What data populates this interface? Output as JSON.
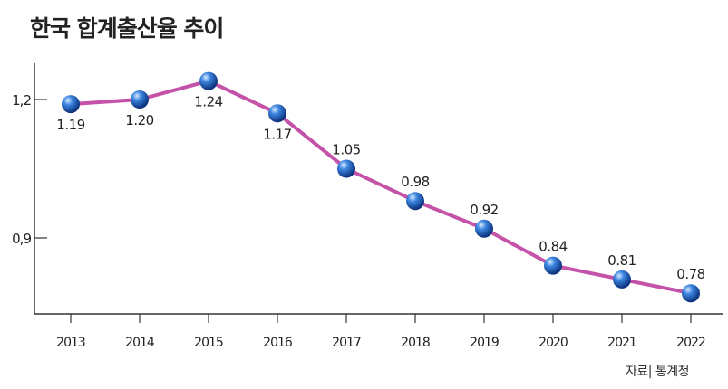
{
  "chart_data": {
    "type": "line",
    "title": "한국 합계출산율 추이",
    "categories": [
      "2013",
      "2014",
      "2015",
      "2016",
      "2017",
      "2018",
      "2019",
      "2020",
      "2021",
      "2022"
    ],
    "values": [
      1.19,
      1.2,
      1.24,
      1.17,
      1.05,
      0.98,
      0.92,
      0.84,
      0.81,
      0.78
    ],
    "data_labels": [
      "1.19",
      "1.20",
      "1.24",
      "1.17",
      "1.05",
      "0.98",
      "0.92",
      "0.84",
      "0.81",
      "0.78"
    ],
    "y_ticks": [
      {
        "value": 1.2,
        "label": "1,2"
      },
      {
        "value": 0.9,
        "label": "0,9"
      }
    ],
    "ylim": [
      0.74,
      1.28
    ],
    "grid": false,
    "line_color": "#c452a8",
    "marker_color": "#1f5fbf",
    "source": "자료| 통계청"
  }
}
